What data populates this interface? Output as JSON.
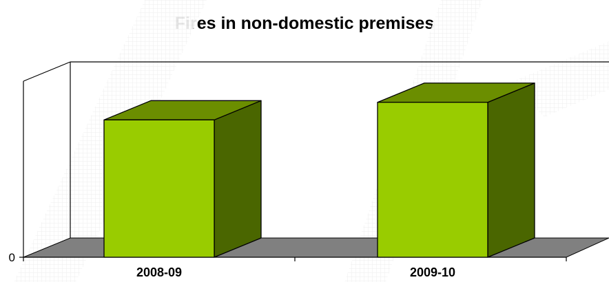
{
  "chart_data": {
    "type": "bar",
    "title": "Fires in non-domestic premises",
    "categories": [
      "2008-09",
      "2009-10"
    ],
    "values": [
      0.78,
      0.88
    ],
    "ylim": [
      0,
      1
    ],
    "ytick_labels": [
      "0"
    ],
    "grid": false,
    "legend": "none",
    "xlabel": "",
    "ylabel": ""
  },
  "colors": {
    "bar_front": "#99cc00",
    "bar_top": "#6b8e00",
    "bar_side": "#4a6600",
    "floor": "#808080",
    "watermark": "#e8e8e8"
  }
}
